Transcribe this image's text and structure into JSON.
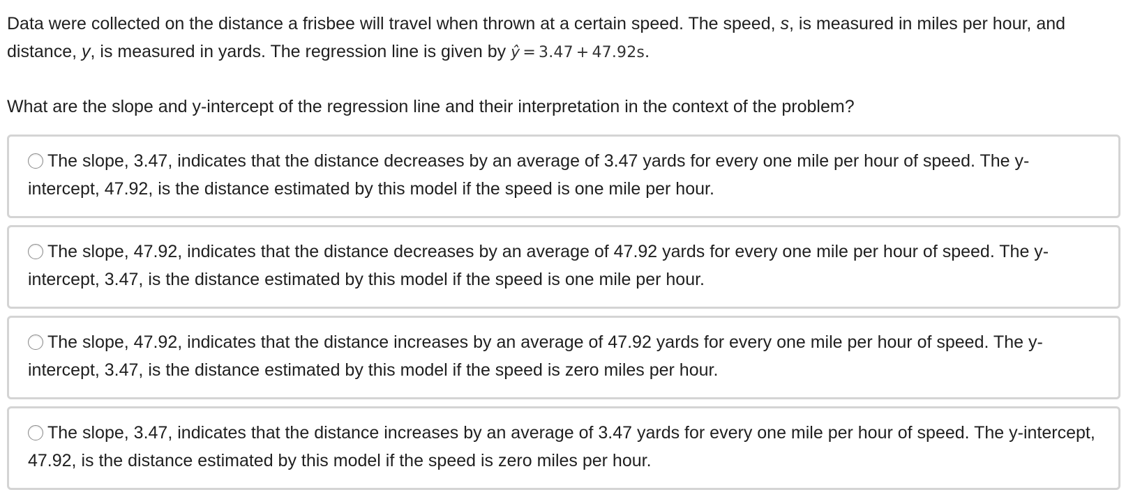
{
  "question": {
    "text_part1": "Data were collected on the distance a frisbee will travel when thrown at a certain speed. The speed, ",
    "var_s": "s",
    "text_part2": ", is measured in miles per hour, and distance, ",
    "var_y": "y",
    "text_part3": ", is measured in yards. The regression line is given by ",
    "equation": {
      "lhs": "ŷ",
      "equals": "=",
      "intercept": "3.47",
      "plus": "+",
      "slope_term": "47.92s"
    },
    "text_part4": ".",
    "prompt": "What are the slope and y-intercept of the regression line and their interpretation in the context of the problem?"
  },
  "options": [
    {
      "text": "The slope, 3.47, indicates that the distance decreases by an average of 3.47 yards for every one mile per hour of speed. The y-intercept, 47.92, is the distance estimated by this model if the speed is one mile per hour.",
      "selected": false
    },
    {
      "text": "The slope, 47.92, indicates that the distance decreases by an average of 47.92 yards for every one mile per hour of speed. The y-intercept, 3.47, is the distance estimated by this model if the speed is one mile per hour.",
      "selected": false
    },
    {
      "text": "The slope, 47.92, indicates that the distance increases by an average of 47.92 yards for every one mile per hour of speed. The y-intercept, 3.47, is the distance estimated by this model if the speed is zero miles per hour.",
      "selected": false
    },
    {
      "text": "The slope, 3.47, indicates that the distance increases by an average of 3.47 yards for every one mile per hour of speed. The y-intercept, 47.92, is the distance estimated by this model if the speed is zero miles per hour.",
      "selected": false
    }
  ]
}
